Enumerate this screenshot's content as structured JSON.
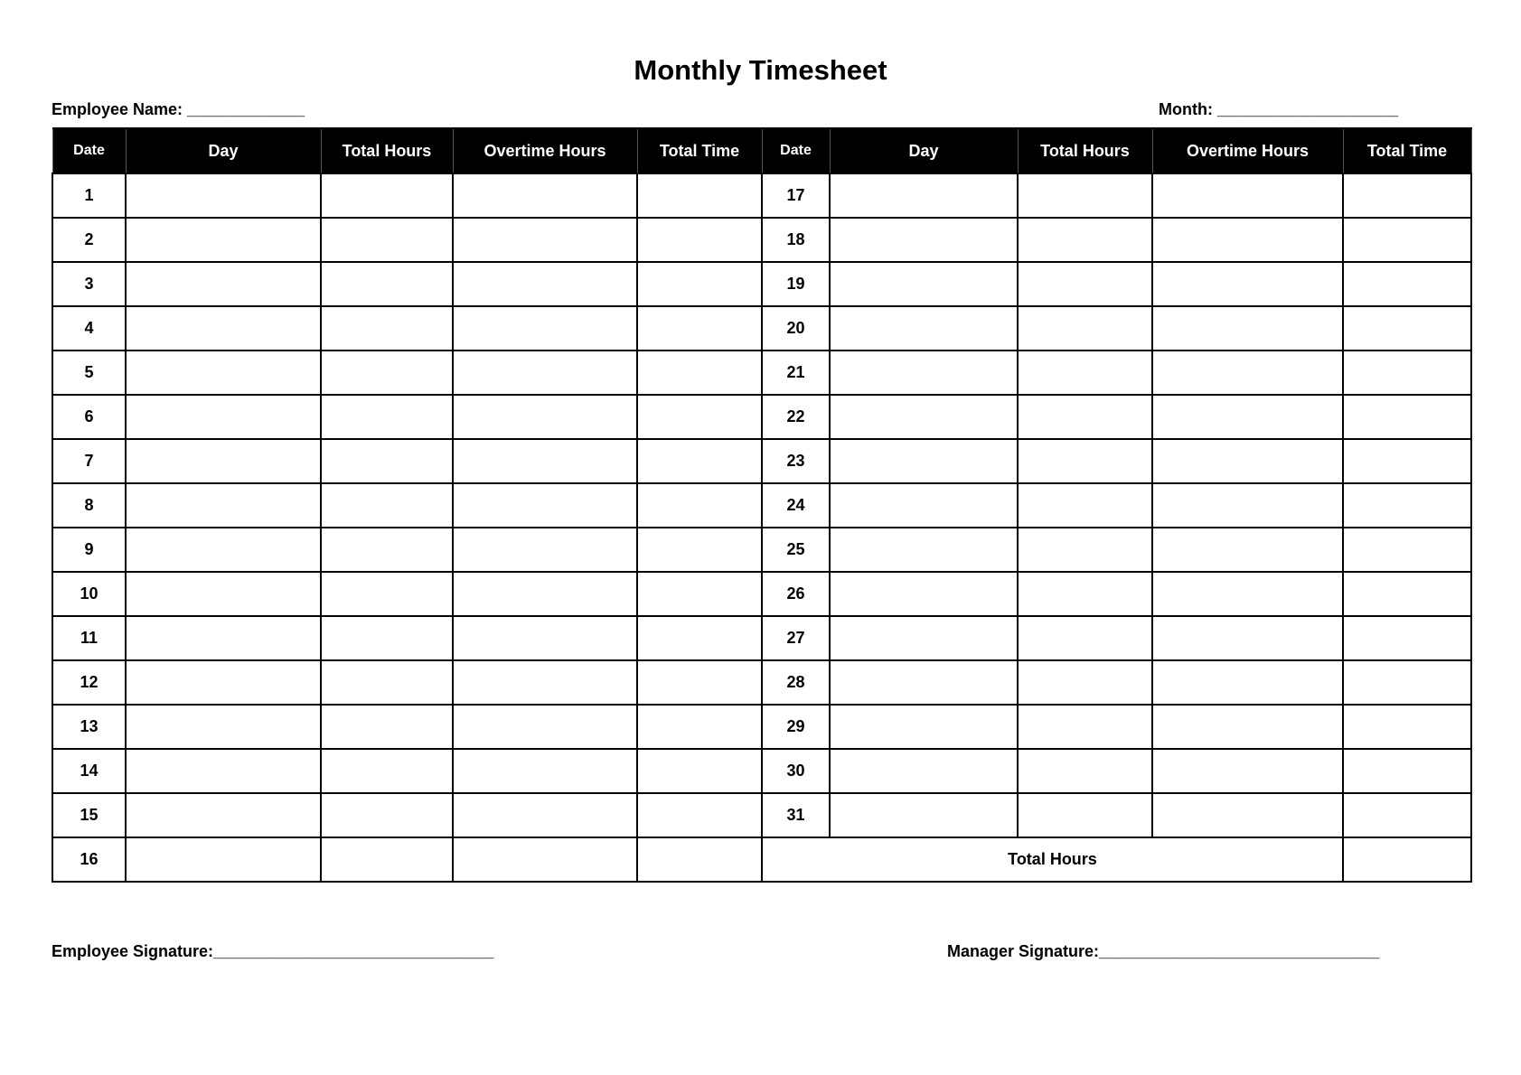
{
  "title": "Monthly Timesheet",
  "employee_name_label": "Employee Name: _____________",
  "month_label": "Month: ____________________",
  "columns": [
    "Date",
    "Day",
    "Total Hours",
    "Overtime Hours",
    "Total Time",
    "Date",
    "Day",
    "Total Hours",
    "Overtime Hours",
    "Total Time"
  ],
  "left_dates": [
    "1",
    "2",
    "3",
    "4",
    "5",
    "6",
    "7",
    "8",
    "9",
    "10",
    "11",
    "12",
    "13",
    "14",
    "15",
    "16"
  ],
  "right_dates": [
    "17",
    "18",
    "19",
    "20",
    "21",
    "22",
    "23",
    "24",
    "25",
    "26",
    "27",
    "28",
    "29",
    "30",
    "31"
  ],
  "total_hours_label": "Total Hours",
  "employee_signature_label": "Employee Signature:_______________________________",
  "manager_signature_label": "Manager Signature:_______________________________"
}
